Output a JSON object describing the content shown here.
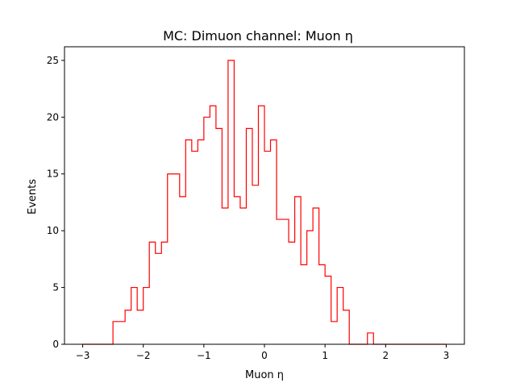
{
  "chart_data": {
    "type": "histogram",
    "title": "MC: Dimuon channel: Muon η",
    "xlabel": "Muon η",
    "ylabel": "Events",
    "xlim": [
      -3.3,
      3.3
    ],
    "ylim": [
      0,
      26.2
    ],
    "grid": false,
    "color": "#ff0000",
    "bin_edges": [
      -3.0,
      -2.9,
      -2.8,
      -2.7,
      -2.6,
      -2.5,
      -2.4,
      -2.3,
      -2.2,
      -2.1,
      -2.0,
      -1.9,
      -1.8,
      -1.7,
      -1.6,
      -1.5,
      -1.4,
      -1.3,
      -1.2,
      -1.1,
      -1.0,
      -0.9,
      -0.8,
      -0.7,
      -0.6,
      -0.5,
      -0.4,
      -0.3,
      -0.2,
      -0.1,
      0.0,
      0.1,
      0.2,
      0.3,
      0.4,
      0.5,
      0.6,
      0.7,
      0.8,
      0.9,
      1.0,
      1.1,
      1.2,
      1.3,
      1.4,
      1.5,
      1.6,
      1.7,
      1.8,
      1.9,
      2.0,
      2.1,
      2.2,
      2.3,
      2.4,
      2.5,
      2.6,
      2.7,
      2.8,
      2.9,
      3.0
    ],
    "counts": [
      0,
      0,
      0,
      0,
      0,
      2,
      2,
      3,
      5,
      3,
      5,
      9,
      8,
      9,
      15,
      15,
      13,
      18,
      17,
      18,
      20,
      21,
      19,
      12,
      25,
      13,
      12,
      19,
      14,
      21,
      17,
      18,
      11,
      11,
      9,
      13,
      7,
      10,
      12,
      7,
      6,
      2,
      5,
      3,
      0,
      0,
      0,
      1,
      0,
      0,
      0,
      0,
      0,
      0,
      0,
      0,
      0,
      0,
      0,
      0
    ],
    "xticks": [
      "−3",
      "−2",
      "−1",
      "0",
      "1",
      "2",
      "3"
    ],
    "xtick_values": [
      -3,
      -2,
      -1,
      0,
      1,
      2,
      3
    ],
    "yticks": [
      "0",
      "5",
      "10",
      "15",
      "20",
      "25"
    ],
    "ytick_values": [
      0,
      5,
      10,
      15,
      20,
      25
    ]
  }
}
